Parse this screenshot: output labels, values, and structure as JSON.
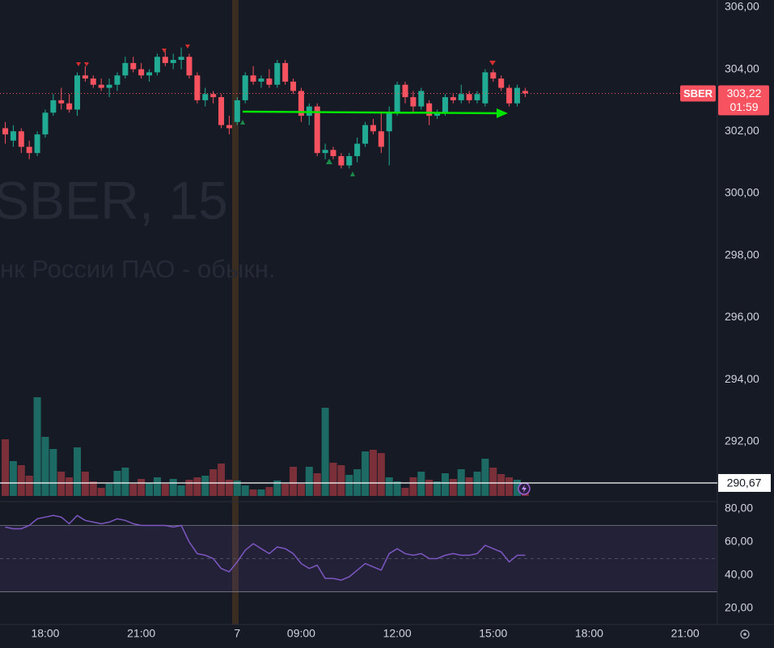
{
  "chart_data": [
    {
      "type": "candlestick",
      "symbol": "SBER",
      "watermark": [
        "SBER, 15",
        "нк России ПАО - обыкн."
      ],
      "open": [
        302.1,
        301.7,
        302.0,
        301.5,
        301.3,
        301.9,
        302.6,
        303.0,
        302.9,
        302.7,
        303.8,
        303.7,
        303.5,
        303.4,
        303.5,
        303.8,
        304.2,
        304.0,
        303.8,
        303.9,
        304.4,
        304.2,
        304.3,
        304.4,
        303.8,
        303.0,
        303.2,
        303.1,
        302.2,
        302.3,
        303.0,
        303.8,
        303.6,
        303.7,
        303.5,
        304.2,
        303.6,
        303.3,
        302.5,
        302.8,
        301.3,
        301.4,
        301.2,
        300.9,
        301.2,
        301.6,
        302.2,
        302.0,
        302.0,
        302.6,
        303.5,
        303.1,
        302.8,
        302.9,
        302.5,
        302.6,
        303.1,
        303.0,
        303.2,
        303.0,
        302.9,
        303.9,
        303.7,
        303.4,
        302.9,
        303.3
      ],
      "high": [
        302.3,
        302.2,
        302.1,
        301.7,
        302.0,
        302.7,
        303.2,
        303.4,
        303.2,
        303.9,
        304.1,
        303.8,
        303.7,
        303.7,
        303.9,
        304.4,
        304.4,
        304.2,
        304.0,
        304.5,
        304.6,
        304.5,
        304.7,
        304.5,
        303.9,
        303.4,
        303.3,
        303.2,
        302.5,
        303.1,
        303.9,
        304.1,
        303.8,
        304.0,
        304.3,
        304.3,
        303.7,
        303.4,
        302.9,
        302.9,
        301.6,
        301.5,
        301.3,
        301.3,
        301.8,
        302.3,
        302.4,
        302.6,
        302.8,
        303.6,
        303.6,
        303.3,
        303.4,
        303.0,
        302.7,
        303.2,
        303.2,
        303.5,
        303.3,
        303.3,
        304.0,
        304.0,
        303.8,
        303.5,
        303.5,
        303.4
      ],
      "low": [
        301.6,
        301.5,
        301.3,
        301.1,
        301.2,
        301.8,
        302.5,
        302.7,
        302.6,
        302.5,
        303.6,
        303.4,
        303.3,
        303.1,
        303.3,
        303.7,
        303.9,
        303.7,
        303.6,
        303.8,
        304.1,
        304.0,
        304.0,
        303.7,
        302.9,
        302.8,
        302.9,
        302.1,
        301.9,
        302.2,
        302.9,
        303.5,
        303.4,
        303.4,
        303.4,
        303.5,
        303.2,
        302.3,
        302.2,
        301.2,
        301.1,
        301.1,
        300.8,
        300.8,
        301.0,
        301.5,
        301.9,
        301.3,
        300.9,
        302.5,
        302.9,
        302.6,
        302.7,
        302.2,
        302.4,
        302.5,
        302.9,
        302.9,
        302.9,
        302.9,
        302.8,
        303.6,
        303.3,
        302.8,
        302.8,
        303.1
      ],
      "close": [
        301.9,
        302.0,
        301.5,
        301.3,
        301.9,
        302.6,
        303.0,
        302.9,
        302.7,
        303.8,
        303.7,
        303.5,
        303.4,
        303.5,
        303.8,
        304.2,
        304.0,
        303.8,
        303.9,
        304.4,
        304.2,
        304.3,
        304.4,
        303.8,
        303.0,
        303.2,
        303.1,
        302.2,
        302.1,
        303.0,
        303.8,
        303.6,
        303.7,
        303.5,
        304.2,
        303.6,
        303.3,
        302.5,
        302.8,
        301.3,
        301.4,
        301.2,
        300.9,
        301.2,
        301.6,
        302.2,
        302.0,
        301.5,
        302.6,
        303.5,
        303.1,
        302.8,
        303.3,
        302.5,
        302.6,
        303.1,
        303.0,
        303.2,
        303.0,
        303.2,
        303.9,
        303.7,
        303.4,
        302.9,
        303.4,
        303.22
      ],
      "up_color": "#22ab94",
      "down_color": "#f7525f",
      "ylim": [
        290.07,
        306.23
      ],
      "yticks": [
        {
          "value": 292,
          "label": "292,00"
        },
        {
          "value": 294,
          "label": "294,00"
        },
        {
          "value": 296,
          "label": "296,00"
        },
        {
          "value": 298,
          "label": "298,00"
        },
        {
          "value": 300,
          "label": "300,00"
        },
        {
          "value": 302,
          "label": "302,00"
        },
        {
          "value": 304,
          "label": "304,00"
        },
        {
          "value": 306,
          "label": "306,00"
        }
      ],
      "last_price": {
        "value": 303.22,
        "label": "303,22"
      },
      "countdown": "01:59",
      "crosshair_price": {
        "value": 290.67,
        "label": "290,67"
      }
    },
    {
      "type": "bar",
      "values": [
        70,
        43,
        38,
        25,
        122,
        73,
        58,
        30,
        23,
        60,
        30,
        18,
        10,
        15,
        31,
        35,
        15,
        21,
        16,
        23,
        15,
        21,
        13,
        20,
        23,
        25,
        33,
        40,
        20,
        19,
        13,
        8,
        8,
        11,
        19,
        15,
        36,
        15,
        36,
        28,
        109,
        41,
        38,
        26,
        33,
        55,
        57,
        53,
        23,
        18,
        10,
        23,
        30,
        20,
        18,
        28,
        21,
        33,
        23,
        30,
        46,
        35,
        27,
        23,
        20,
        12
      ],
      "up_color": "#1d6a64",
      "down_color": "#7b2f38"
    },
    {
      "type": "line",
      "values": [
        69,
        68,
        68,
        70,
        74,
        75,
        76,
        75,
        71,
        76,
        73,
        72,
        71,
        72,
        74,
        73,
        71,
        70,
        70,
        70,
        70,
        69,
        70,
        60,
        53,
        52,
        50,
        44,
        42,
        48,
        55,
        59,
        56,
        53,
        57,
        56,
        53,
        47,
        44,
        46,
        38,
        38,
        37,
        39,
        43,
        47,
        45,
        43,
        53,
        56,
        53,
        52,
        53,
        50,
        50,
        52,
        53,
        52,
        52,
        53,
        58,
        56,
        54,
        48,
        52,
        52
      ],
      "color": "#7e57c2",
      "band": [
        30,
        70
      ],
      "ylim": [
        10.2,
        83.9
      ],
      "yticks": [
        {
          "value": 20,
          "label": "20,00"
        },
        {
          "value": 40,
          "label": "40,00"
        },
        {
          "value": 60,
          "label": "60,00"
        },
        {
          "value": 80,
          "label": "80,00"
        }
      ],
      "xlim": [
        -0.66,
        89.03
      ],
      "xticks": [
        {
          "value": 5,
          "label": "18:00"
        },
        {
          "value": 17,
          "label": "21:00"
        },
        {
          "value": 29,
          "label": "7"
        },
        {
          "value": 37,
          "label": "09:00"
        },
        {
          "value": 49,
          "label": "12:00"
        },
        {
          "value": 61,
          "label": "15:00"
        },
        {
          "value": 73,
          "label": "18:00"
        },
        {
          "value": 85,
          "label": "21:00"
        }
      ]
    }
  ]
}
